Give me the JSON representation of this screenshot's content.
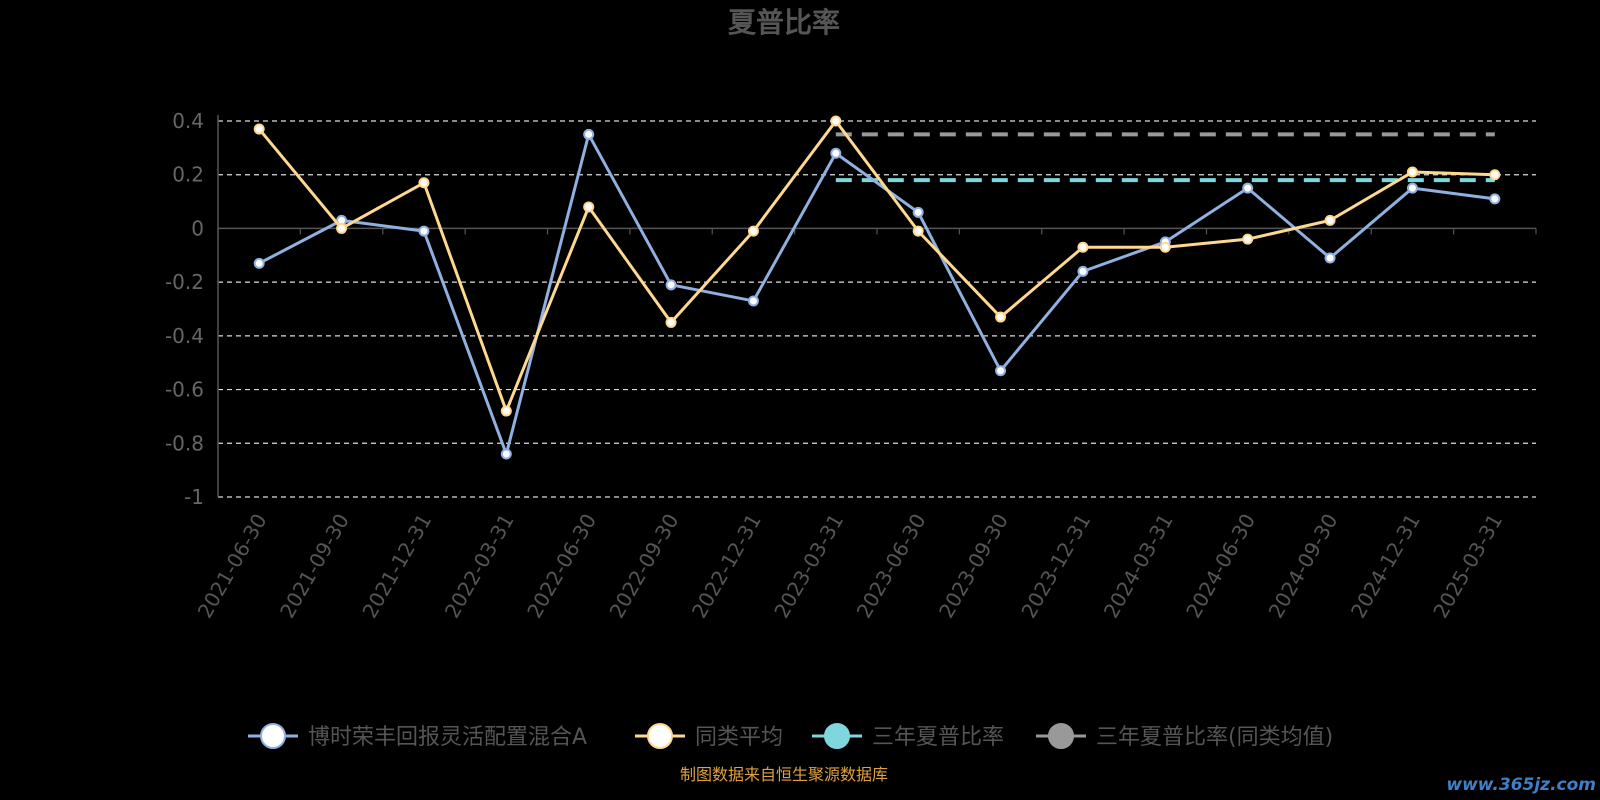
{
  "chart_data": {
    "type": "line",
    "title": "夏普比率",
    "categories": [
      "2021-06-30",
      "2021-09-30",
      "2021-12-31",
      "2022-03-31",
      "2022-06-30",
      "2022-09-30",
      "2022-12-31",
      "2023-03-31",
      "2023-06-30",
      "2023-09-30",
      "2023-12-31",
      "2024-03-31",
      "2024-06-30",
      "2024-09-30",
      "2024-12-31",
      "2025-03-31"
    ],
    "ylim": [
      -1,
      0.4
    ],
    "yticks": [
      0.4,
      0.2,
      0,
      -0.2,
      -0.4,
      -0.6,
      -0.8,
      -1
    ],
    "ytick_labels": [
      "0.4",
      "0.2",
      "0",
      "-0.2",
      "-0.4",
      "-0.6",
      "-0.8",
      "-1"
    ],
    "grid": true,
    "legend_position": "bottom",
    "series": [
      {
        "name": "博时荣丰回报灵活配置混合A",
        "color": "#8fb0e0",
        "values": [
          -0.13,
          0.03,
          -0.01,
          -0.84,
          0.35,
          -0.21,
          -0.27,
          0.28,
          0.06,
          -0.53,
          -0.16,
          -0.05,
          0.15,
          -0.11,
          0.15,
          0.11
        ]
      },
      {
        "name": "同类平均",
        "color": "#ffd890",
        "values": [
          0.37,
          0.0,
          0.17,
          -0.68,
          0.08,
          -0.35,
          -0.01,
          0.4,
          -0.01,
          -0.33,
          -0.07,
          -0.07,
          -0.04,
          0.03,
          0.21,
          0.2
        ]
      },
      {
        "name": "三年夏普比率",
        "color": "#7fd6dc",
        "value": 0.18,
        "from_category": "2023-03-31",
        "line_style": "dashed"
      },
      {
        "name": "三年夏普比率(同类均值)",
        "color": "#999999",
        "value": 0.35,
        "from_category": "2023-03-31",
        "line_style": "dashed"
      }
    ]
  },
  "source_note": "制图数据来自恒生聚源数据库",
  "watermark": "www.365jz.com"
}
